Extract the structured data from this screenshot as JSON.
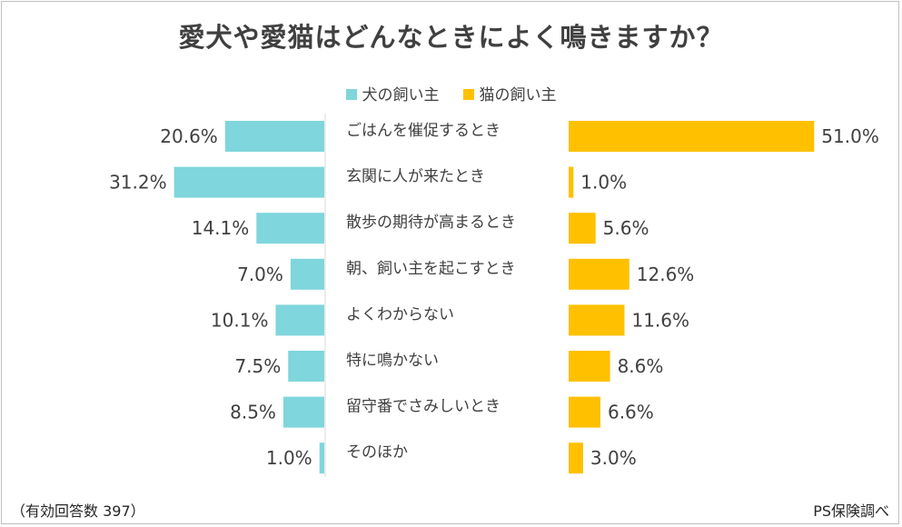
{
  "chart_data": {
    "type": "bar",
    "title": "愛犬や愛猫はどんなときによく鳴きますか？",
    "categories": [
      "ごはんを催促するとき",
      "玄関に人が来たとき",
      "散歩の期待が高まるとき",
      "朝、飼い主を起こすとき",
      "よくわからない",
      "特に鳴かない",
      "留守番でさみしいとき",
      "そのほか"
    ],
    "series": [
      {
        "name": "犬の飼い主",
        "color": "#7fd6dc",
        "values": [
          20.6,
          31.2,
          14.1,
          7.0,
          10.1,
          7.5,
          8.5,
          1.0
        ]
      },
      {
        "name": "猫の飼い主",
        "color": "#ffc000",
        "values": [
          51.0,
          1.0,
          5.6,
          12.6,
          11.6,
          8.6,
          6.6,
          3.0
        ]
      }
    ],
    "value_format": "percent_1dp",
    "legend_position": "top",
    "layout": "back-to-back horizontal bars"
  },
  "footer": {
    "note": "（有効回答数 397）",
    "source": "PS保険調べ"
  }
}
